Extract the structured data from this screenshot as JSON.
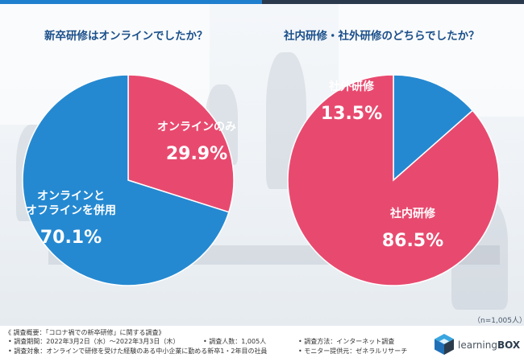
{
  "chart_data": [
    {
      "type": "pie",
      "title": "新卒研修はオンラインでしたか？",
      "slices": [
        {
          "label": "オンラインのみ",
          "value": 29.9,
          "value_label": "29.9%",
          "color": "#e84a6f"
        },
        {
          "label": "オンラインと\nオフラインを併用",
          "value": 70.1,
          "value_label": "70.1%",
          "color": "#2589d1"
        }
      ]
    },
    {
      "type": "pie",
      "title": "社内研修・社外研修のどちらでしたか？",
      "slices": [
        {
          "label": "社外研修",
          "value": 13.5,
          "value_label": "13.5%",
          "color": "#2589d1"
        },
        {
          "label": "社内研修",
          "value": 86.5,
          "value_label": "86.5%",
          "color": "#e84a6f"
        }
      ]
    }
  ],
  "sample_note": "（n=1,005人）",
  "footer": {
    "survey_title": "《 調査概要：「コロナ禍での新卒研修」に関する調査》",
    "items": {
      "period": "• 調査期間：2022年3月2日（水）～2022年3月3日（木）",
      "respondents": "• 調査人数：1,005人",
      "method": "• 調査方法：インターネット調査",
      "target": "• 調査対象：オンラインで研修を受けた経験のある中小企業に勤める新卒1・2年目の社員",
      "monitor": "• モニター提供元：ゼネラルリサーチ"
    },
    "logo": {
      "prefix": "learning",
      "brand": "BOX"
    }
  }
}
